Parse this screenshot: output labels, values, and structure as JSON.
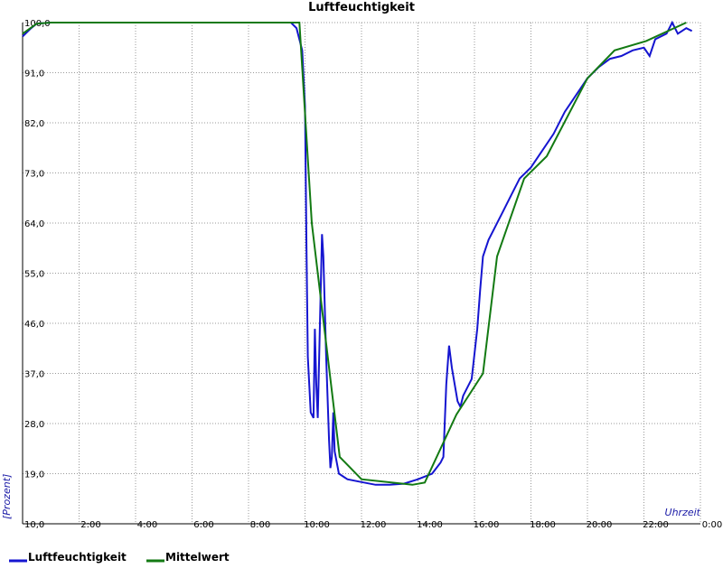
{
  "chart_data": {
    "type": "line",
    "title": "Luftfeuchtigkeit",
    "x_label": "Uhrzeit",
    "y_label": "[Prozent]",
    "xlim": [
      0,
      24
    ],
    "ylim": [
      10,
      100
    ],
    "xticks": [
      {
        "value": 2,
        "label": "2:00"
      },
      {
        "value": 4,
        "label": "4:00"
      },
      {
        "value": 6,
        "label": "6:00"
      },
      {
        "value": 8,
        "label": "8:00"
      },
      {
        "value": 10,
        "label": "10:00"
      },
      {
        "value": 12,
        "label": "12:00"
      },
      {
        "value": 14,
        "label": "14:00"
      },
      {
        "value": 16,
        "label": "16:00"
      },
      {
        "value": 18,
        "label": "18:00"
      },
      {
        "value": 20,
        "label": "20:00"
      },
      {
        "value": 22,
        "label": "22:00"
      },
      {
        "value": 24,
        "label": "0:00"
      }
    ],
    "yticks": [
      {
        "value": 10,
        "label": "10,0"
      },
      {
        "value": 19,
        "label": "19,0"
      },
      {
        "value": 28,
        "label": "28,0"
      },
      {
        "value": 37,
        "label": "37,0"
      },
      {
        "value": 46,
        "label": "46,0"
      },
      {
        "value": 55,
        "label": "55,0"
      },
      {
        "value": 64,
        "label": "64,0"
      },
      {
        "value": 73,
        "label": "73,0"
      },
      {
        "value": 82,
        "label": "82,0"
      },
      {
        "value": 91,
        "label": "91,0"
      },
      {
        "value": 100,
        "label": "100,0"
      }
    ],
    "grid": true,
    "series": [
      {
        "name": "Luftfeuchtigkeit",
        "color": "#1515d0",
        "x": [
          0,
          0.3,
          0.5,
          1.0,
          9.5,
          9.7,
          9.9,
          10.0,
          10.05,
          10.1,
          10.2,
          10.3,
          10.35,
          10.4,
          10.45,
          10.6,
          10.65,
          10.75,
          10.85,
          10.9,
          10.95,
          11.0,
          11.05,
          11.2,
          11.5,
          12.0,
          12.5,
          13.0,
          13.5,
          14.0,
          14.5,
          14.8,
          14.9,
          15.0,
          15.1,
          15.2,
          15.4,
          15.5,
          15.6,
          15.8,
          15.9,
          16.1,
          16.2,
          16.3,
          16.5,
          16.7,
          17.0,
          17.3,
          17.6,
          18.0,
          18.4,
          18.8,
          19.2,
          19.6,
          20.0,
          20.4,
          20.8,
          21.2,
          21.6,
          22.0,
          22.2,
          22.4,
          22.8,
          23.0,
          23.2,
          23.5,
          23.7
        ],
        "values": [
          97.5,
          99,
          99.8,
          100,
          100,
          99,
          95,
          85,
          60,
          40,
          30,
          29,
          45,
          35,
          29,
          62,
          58,
          40,
          25,
          20,
          22,
          30,
          23,
          19,
          18,
          17.5,
          17,
          17,
          17.2,
          18,
          19,
          21,
          22,
          35,
          42,
          38,
          32,
          31,
          33,
          35,
          36,
          45,
          52,
          58,
          61,
          63,
          66,
          69,
          72,
          74,
          77,
          80,
          84,
          87,
          90,
          92,
          93.5,
          94,
          95,
          95.5,
          94,
          97,
          98,
          100,
          98,
          99,
          98.5
        ]
      },
      {
        "name": "Mittelwert",
        "color": "#137a13",
        "x": [
          0,
          0.5,
          1.0,
          9.8,
          10.24,
          10.78,
          11.23,
          12.0,
          13.8,
          14.24,
          15.36,
          16.3,
          16.8,
          17.76,
          18.56,
          20.0,
          20.96,
          22.08,
          23.5
        ],
        "values": [
          98,
          99.8,
          100,
          100,
          64,
          41,
          22,
          18,
          17,
          17.4,
          29.6,
          37,
          58,
          72,
          76,
          90,
          95,
          96.7,
          100
        ]
      }
    ]
  }
}
